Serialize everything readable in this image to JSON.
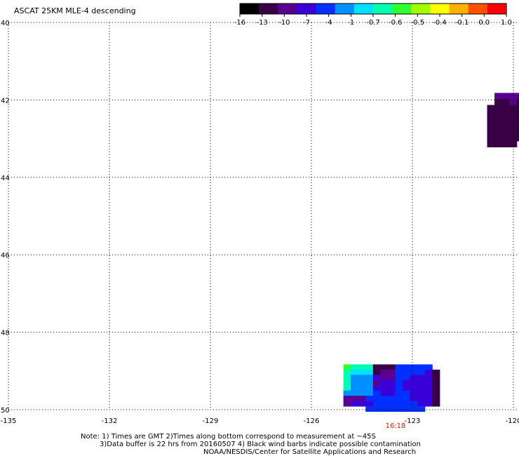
{
  "title": "ASCAT 25KM MLE-4 descending",
  "colorbar": {
    "labels": [
      "-16",
      "-13",
      "-10",
      "-7",
      "-4",
      "-1",
      "-0.7",
      "-0.6",
      "-0.5",
      "-0.4",
      "-0.1",
      "0.0",
      "1.0"
    ],
    "colors": [
      "#000000",
      "#3a0045",
      "#5a0090",
      "#3a00d8",
      "#0030ff",
      "#0090ff",
      "#00e0ff",
      "#00ffb0",
      "#30ff30",
      "#a0ff00",
      "#ffff00",
      "#ffb000",
      "#ff5000",
      "#ff0000"
    ]
  },
  "chart_data": {
    "type": "heatmap",
    "title": "ASCAT 25KM MLE-4 descending",
    "x_ticks": [
      "-135",
      "-132",
      "-129",
      "-126",
      "-123",
      "-120"
    ],
    "y_ticks": [
      "40",
      "42",
      "44",
      "46",
      "48",
      "50"
    ],
    "xlim": [
      -135,
      -120
    ],
    "ylim": [
      40,
      50
    ],
    "grid": true,
    "time_label": "16:18",
    "time_lon": -123.5,
    "swaths": [
      {
        "name": "northeast",
        "lon0": -121.0,
        "lat0": 41.82,
        "dlon": 0.22,
        "dlat": 0.155,
        "colors": [
          [
            null,
            null,
            "#5a0090",
            "#5a0090",
            "#5a0090",
            "#5a0090",
            "#5a0090",
            "#5a0090",
            "#3a0045"
          ],
          [
            null,
            null,
            "#3a0045",
            "#3a0045",
            "#5a0090",
            "#3a0045",
            "#3a0045",
            "#3a0045",
            "#3a0045"
          ],
          [
            null,
            "#3a0045",
            "#3a0045",
            "#3a0045",
            "#3a0045",
            "#3a0045",
            "#3a0045",
            "#3a0045",
            "#3a0045"
          ],
          [
            null,
            "#3a0045",
            "#3a0045",
            "#3a0045",
            "#3a0045",
            "#3a0045",
            "#3a0045",
            "#3a0045",
            null
          ],
          [
            null,
            "#3a0045",
            "#3a0045",
            "#3a0045",
            "#3a0045",
            "#3a0045",
            "#3a0045",
            "#3a0045",
            null
          ],
          [
            null,
            "#3a0045",
            "#3a0045",
            "#3a0045",
            "#3a0045",
            "#3a0045",
            "#3a0045",
            null,
            null
          ],
          [
            null,
            "#3a0045",
            "#3a0045",
            "#3a0045",
            "#3a0045",
            "#3a0045",
            "#3a0045",
            null,
            null
          ],
          [
            null,
            "#3a0045",
            "#3a0045",
            "#3a0045",
            "#3a0045",
            "#3a0045",
            null,
            null,
            null
          ],
          [
            null,
            "#3a0045",
            "#3a0045",
            "#3a0045",
            "#3a0045",
            null,
            null,
            null,
            null
          ]
        ]
      },
      {
        "name": "south",
        "lon0": -125.05,
        "lat0": 48.83,
        "dlon": 0.22,
        "dlat": 0.135,
        "colors": [
          [
            "#30ff30",
            "#00ffb0",
            "#00ffb0",
            "#00ffb0",
            "#3a0045",
            "#3a0045",
            "#3a0045",
            "#0030ff",
            "#0030ff",
            "#0030ff",
            "#0030ff",
            "#0030ff",
            null
          ],
          [
            "#00ffb0",
            "#00e0ff",
            "#00e0ff",
            "#00e0ff",
            "#3a0045",
            "#5a0090",
            "#5a0090",
            "#0030ff",
            "#0030ff",
            "#0030ff",
            "#0030ff",
            "#3a00d8",
            "#3a0045"
          ],
          [
            "#00ffb0",
            "#0090ff",
            "#0090ff",
            "#0090ff",
            "#3a00d8",
            "#5a0090",
            "#5a0090",
            "#0030ff",
            "#0030ff",
            "#3a00d8",
            "#3a00d8",
            "#3a00d8",
            "#3a0045"
          ],
          [
            "#00ffb0",
            "#0090ff",
            "#0090ff",
            "#0090ff",
            "#5a0090",
            "#3a00d8",
            "#3a00d8",
            "#0030ff",
            "#3a00d8",
            "#3a00d8",
            "#3a00d8",
            "#3a00d8",
            "#3a0045"
          ],
          [
            "#00ffb0",
            "#0090ff",
            "#0090ff",
            "#0090ff",
            "#3a00d8",
            "#3a00d8",
            "#3a00d8",
            "#0030ff",
            "#3a00d8",
            "#3a00d8",
            "#3a00d8",
            "#3a00d8",
            "#3a0045"
          ],
          [
            "#0090ff",
            "#0090ff",
            "#0090ff",
            "#0090ff",
            "#0030ff",
            "#3a00d8",
            "#3a00d8",
            "#0030ff",
            "#0030ff",
            "#3a00d8",
            "#3a00d8",
            "#3a00d8",
            "#3a0045"
          ],
          [
            "#5a0090",
            "#5a0090",
            "#5a0090",
            "#0030ff",
            "#0030ff",
            "#0030ff",
            "#0030ff",
            "#0030ff",
            "#0030ff",
            "#3a00d8",
            "#3a00d8",
            "#3a00d8",
            "#3a0045"
          ],
          [
            "#5a0090",
            "#3a00d8",
            "#3a00d8",
            "#3a00d8",
            "#0030ff",
            "#0030ff",
            "#0030ff",
            "#0030ff",
            "#0030ff",
            "#0030ff",
            "#3a00d8",
            "#3a00d8",
            "#3a0045"
          ],
          [
            null,
            null,
            null,
            "#0030ff",
            "#0030ff",
            "#0030ff",
            "#0030ff",
            "#0030ff",
            "#0030ff",
            "#0030ff",
            "#0030ff",
            null,
            null
          ]
        ]
      }
    ]
  },
  "notes": {
    "line1": "Note: 1) Times are GMT 2)Times along bottom correspond to measurement at ~45S",
    "line2": "3)Data buffer is 22 hrs from 20160507 4) Black wind barbs indicate possible contamination",
    "line3": "NOAA/NESDIS/Center for Satellite Applications and Research"
  }
}
